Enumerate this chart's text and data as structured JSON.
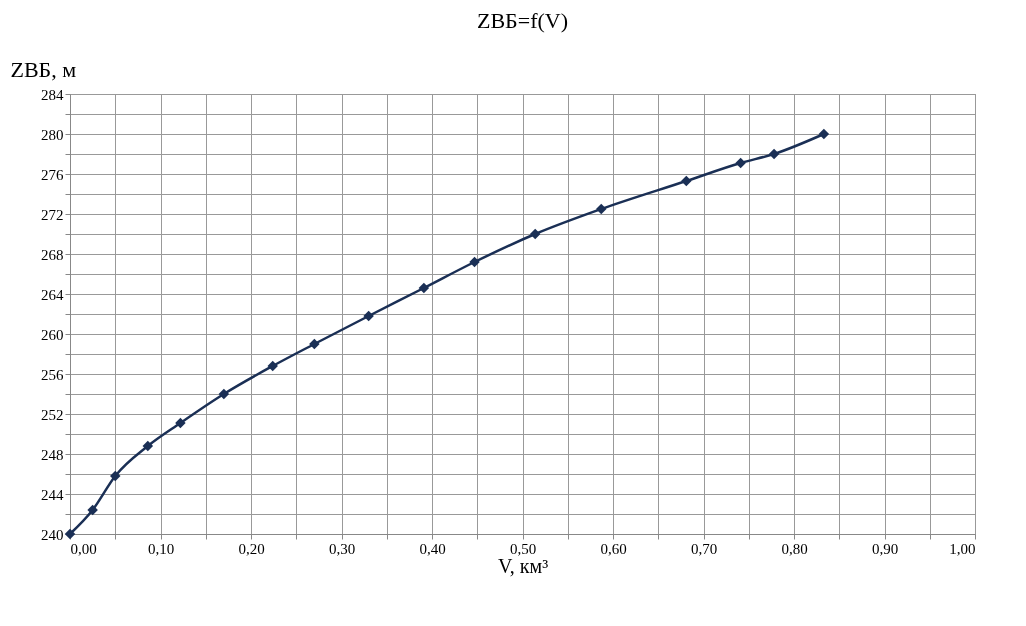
{
  "chart_data": {
    "type": "line",
    "title": "ZВБ=f(V)",
    "xlabel": "V, км³",
    "ylabel": "ZВБ, м",
    "x": [
      0,
      0.025,
      0.05,
      0.086,
      0.122,
      0.17,
      0.224,
      0.27,
      0.33,
      0.391,
      0.447,
      0.514,
      0.587,
      0.681,
      0.741,
      0.778,
      0.833
    ],
    "series": [
      {
        "color": "#1a2f55",
        "values": [
          240,
          242.4,
          245.8,
          248.8,
          251.1,
          254.0,
          256.8,
          259.0,
          261.8,
          264.6,
          267.2,
          270.0,
          272.5,
          275.3,
          277.1,
          278.0,
          280.0
        ]
      }
    ],
    "xlim": [
      0,
      1
    ],
    "xticks": [
      {
        "value": 0,
        "label": "0,00"
      },
      {
        "value": 0.05,
        "label": null
      },
      {
        "value": 0.1,
        "label": "0,10"
      },
      {
        "value": 0.15,
        "label": null
      },
      {
        "value": 0.2,
        "label": "0,20"
      },
      {
        "value": 0.25,
        "label": null
      },
      {
        "value": 0.3,
        "label": "0,30"
      },
      {
        "value": 0.35,
        "label": null
      },
      {
        "value": 0.4,
        "label": "0,40"
      },
      {
        "value": 0.45,
        "label": null
      },
      {
        "value": 0.5,
        "label": "0,50"
      },
      {
        "value": 0.55,
        "label": null
      },
      {
        "value": 0.6,
        "label": "0,60"
      },
      {
        "value": 0.65,
        "label": null
      },
      {
        "value": 0.7,
        "label": "0,70"
      },
      {
        "value": 0.75,
        "label": null
      },
      {
        "value": 0.8,
        "label": "0,80"
      },
      {
        "value": 0.85,
        "label": null
      },
      {
        "value": 0.9,
        "label": "0,90"
      },
      {
        "value": 0.95,
        "label": null
      },
      {
        "value": 1,
        "label": "1,00"
      }
    ],
    "ylim": [
      240,
      284
    ],
    "yticks": [
      240,
      {
        "value": 242,
        "label": null
      },
      244,
      {
        "value": 246,
        "label": null
      },
      248,
      {
        "value": 250,
        "label": null
      },
      252,
      {
        "value": 254,
        "label": null
      },
      256,
      {
        "value": 258,
        "label": null
      },
      260,
      {
        "value": 262,
        "label": null
      },
      264,
      {
        "value": 266,
        "label": null
      },
      268,
      {
        "value": 270,
        "label": null
      },
      272,
      {
        "value": 274,
        "label": null
      },
      276,
      {
        "value": 278,
        "label": null
      },
      280,
      {
        "value": 282,
        "label": null
      },
      284
    ],
    "grid": true,
    "marker": "diamond",
    "line_style": "solid"
  }
}
